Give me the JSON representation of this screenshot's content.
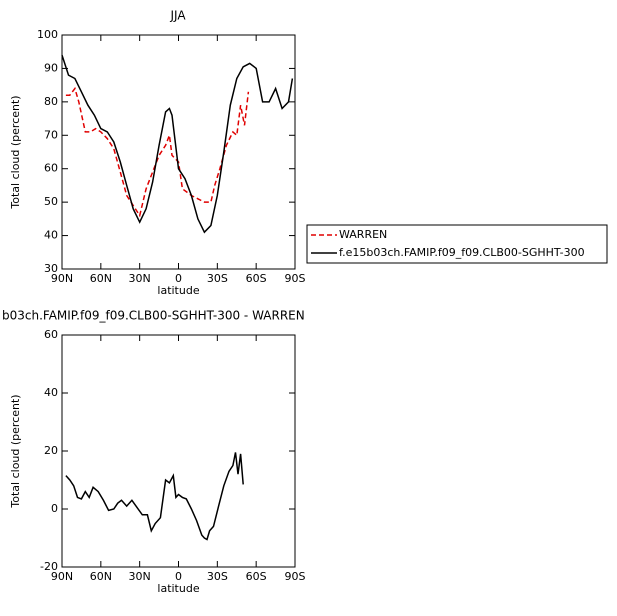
{
  "chart_data": [
    {
      "type": "line",
      "title": "JJA",
      "xlabel": "latitude",
      "ylabel": "Total cloud (percent)",
      "xlim": [
        90,
        -90
      ],
      "xticks": [
        {
          "value": 90,
          "label": "90N"
        },
        {
          "value": 60,
          "label": "60N"
        },
        {
          "value": 30,
          "label": "30N"
        },
        0,
        {
          "value": -30,
          "label": "30S"
        },
        {
          "value": -60,
          "label": "60S"
        },
        {
          "value": -90,
          "label": "90S"
        }
      ],
      "ylim": [
        30,
        100
      ],
      "yticks": [
        30,
        40,
        50,
        60,
        70,
        80,
        90,
        100
      ],
      "legend": "right",
      "series": [
        {
          "name": "WARREN",
          "color": "#e00000",
          "dashed": true,
          "x": [
            87,
            84,
            80,
            77,
            72,
            68,
            64,
            60,
            55,
            50,
            45,
            40,
            35,
            30,
            25,
            20,
            15,
            10,
            7,
            5,
            0,
            -3,
            -10,
            -15,
            -20,
            -25,
            -28,
            -32,
            -37,
            -42,
            -45,
            -48,
            -51,
            -54
          ],
          "values": [
            82,
            82,
            84,
            80,
            71,
            71,
            72,
            71,
            69,
            66,
            59,
            52,
            49,
            46,
            54,
            59,
            64,
            67,
            70,
            64,
            62,
            54,
            52,
            51,
            50,
            50,
            55,
            60,
            67,
            71,
            70,
            79,
            73,
            83
          ]
        },
        {
          "name": "f.e15b03ch.FAMIP.f09_f09.CLB00-SGHHT-300",
          "color": "#000000",
          "dashed": false,
          "x": [
            90,
            85,
            80,
            75,
            70,
            65,
            60,
            55,
            50,
            45,
            40,
            35,
            30,
            25,
            20,
            15,
            10,
            7,
            5,
            0,
            -5,
            -10,
            -15,
            -20,
            -25,
            -30,
            -35,
            -40,
            -45,
            -50,
            -55,
            -60,
            -65,
            -70,
            -75,
            -80,
            -85,
            -88
          ],
          "values": [
            94,
            88,
            87,
            83,
            79,
            76,
            72,
            71,
            68,
            62,
            55,
            48,
            44,
            48,
            56,
            67,
            77,
            78,
            76,
            60,
            57,
            52,
            45,
            41,
            43,
            52,
            65,
            79,
            87,
            90.5,
            91.5,
            90,
            80,
            80,
            84,
            78,
            80,
            87
          ]
        }
      ]
    },
    {
      "type": "line",
      "title": "b03ch.FAMIP.f09_f09.CLB00-SGHHT-300 - WARREN",
      "xlabel": "latitude",
      "ylabel": "Total cloud (percent)",
      "xlim": [
        90,
        -90
      ],
      "xticks": [
        {
          "value": 90,
          "label": "90N"
        },
        {
          "value": 60,
          "label": "60N"
        },
        {
          "value": 30,
          "label": "30N"
        },
        0,
        {
          "value": -30,
          "label": "30S"
        },
        {
          "value": -60,
          "label": "60S"
        },
        {
          "value": -90,
          "label": "90S"
        }
      ],
      "ylim": [
        -20,
        60
      ],
      "yticks": [
        -20,
        0,
        20,
        40,
        60
      ],
      "series": [
        {
          "color": "#000000",
          "dashed": false,
          "x": [
            87,
            84,
            81,
            78,
            75,
            72,
            69,
            66,
            62,
            58,
            54,
            50,
            47,
            44,
            40,
            36,
            32,
            28,
            24,
            21,
            18,
            14,
            10,
            7,
            4,
            2,
            0,
            -3,
            -6,
            -10,
            -14,
            -18,
            -20,
            -22,
            -24,
            -27,
            -31,
            -35,
            -39,
            -42,
            -44,
            -46,
            -48,
            -50
          ],
          "values": [
            11.5,
            10,
            8,
            4,
            3.5,
            6,
            4,
            7.5,
            6,
            3,
            -0.5,
            0,
            2,
            3,
            1,
            3,
            0.5,
            -2,
            -2,
            -7.5,
            -5,
            -3,
            10,
            9,
            11.5,
            4,
            5,
            4,
            3.5,
            0,
            -4,
            -9,
            -10,
            -10.5,
            -7.5,
            -6,
            1,
            8,
            13,
            15,
            19.5,
            12,
            19,
            8.5
          ]
        }
      ]
    }
  ]
}
